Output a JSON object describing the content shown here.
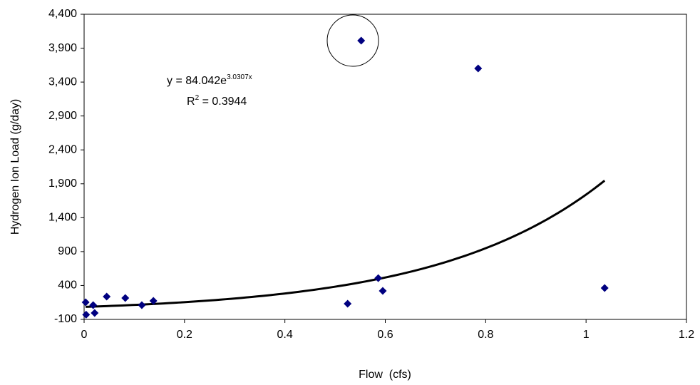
{
  "chart_data": {
    "type": "scatter",
    "x_label": "Flow  (cfs)",
    "y_label": "Hydrogen Ion Load (g/day)",
    "series": [
      {
        "color": "#000080",
        "x": [
          0.003,
          0.004,
          0.018,
          0.021,
          0.045,
          0.082,
          0.115,
          0.138,
          0.525,
          0.552,
          0.586,
          0.595,
          0.785,
          1.037
        ],
        "values": [
          152,
          -30,
          110,
          -5,
          236,
          215,
          110,
          173,
          131,
          4011,
          509,
          320,
          3601,
          362
        ]
      }
    ],
    "trendline": {
      "type": "exponential",
      "a": 84.042,
      "b": 3.0307,
      "color": "#000000",
      "equation": "y = 84.042e",
      "equation_exponent": "3.0307x",
      "r2_label": "R",
      "r2_exponent": "2",
      "r2_value": " = 0.3944"
    },
    "xlim": [
      0,
      1.2
    ],
    "xticks": [
      0,
      0.2,
      0.4,
      0.6,
      0.8,
      1,
      1.2
    ],
    "ylim": [
      -100,
      4400
    ],
    "yticks": [
      -100,
      400,
      900,
      {
        "value": 1400,
        "label": "1,400"
      },
      {
        "value": 1900,
        "label": "1,900"
      },
      {
        "value": 2400,
        "label": "2,400"
      },
      {
        "value": 2900,
        "label": "2,900"
      },
      {
        "value": 3400,
        "label": "3,400"
      },
      {
        "value": 3900,
        "label": "3,900"
      },
      {
        "value": 4400,
        "label": "4,400"
      }
    ]
  }
}
